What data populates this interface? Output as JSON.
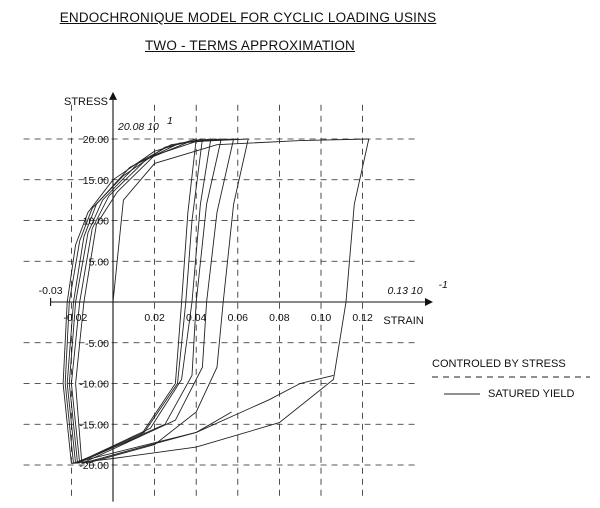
{
  "titles": {
    "line1": "ENDOCHRONIQUE MODEL FOR CYCLIC LOADING USINS",
    "line2": "TWO - TERMS APPROXIMATION"
  },
  "legend": {
    "dashed_label": "CONTROLED BY STRESS",
    "solid_label": "SATURED YIELD"
  },
  "chart_data": {
    "type": "line",
    "title": "ENDOCHRONIQUE MODEL FOR CYCLIC LOADING USINS",
    "subtitle": "TWO - TERMS APPROXIMATION",
    "xlabel": "STRAIN",
    "ylabel": "STRESS",
    "xlim": [
      -0.035,
      0.13
    ],
    "ylim": [
      -20,
      20
    ],
    "x_ticks": [
      "0.02",
      "0.04",
      "0.06",
      "0.08",
      "0.10",
      "0.12"
    ],
    "x_tick_values": [
      0.02,
      0.04,
      0.06,
      0.08,
      0.1,
      0.12
    ],
    "x_neg_ticks": [
      "-0.02",
      "-0.03"
    ],
    "y_ticks": [
      "20.00",
      "15.00",
      "10.00",
      "5.00",
      "-5.00",
      "-10.00",
      "-15.00",
      "-20.00"
    ],
    "y_tick_values": [
      20,
      15,
      10,
      5,
      -5,
      -10,
      -15,
      -20
    ],
    "annotations": {
      "y_max": {
        "base": "20.08 10",
        "exp": "1"
      },
      "x_max": {
        "base": "0.13 10",
        "exp": "-1"
      }
    },
    "grid": true,
    "series": [
      {
        "values": [
          [
            0,
            0
          ],
          [
            0.005,
            12.5
          ],
          [
            0.02,
            17
          ],
          [
            0.05,
            19.3
          ],
          [
            0.09,
            19.8
          ],
          [
            0.123,
            20
          ]
        ]
      },
      {
        "values": [
          [
            0.123,
            20
          ],
          [
            0.116,
            12
          ],
          [
            0.112,
            0
          ],
          [
            0.106,
            -9.5
          ],
          [
            0.08,
            -14.8
          ],
          [
            0.04,
            -17.8
          ],
          [
            0,
            -19.2
          ],
          [
            -0.02,
            -19.8
          ]
        ]
      },
      {
        "values": [
          [
            -0.02,
            -19.8
          ],
          [
            0.04,
            -16
          ],
          [
            0.075,
            -12
          ],
          [
            0.09,
            -10
          ],
          [
            0.106,
            -9
          ]
        ]
      },
      {
        "values": [
          [
            0.065,
            20
          ],
          [
            0.058,
            12
          ],
          [
            0.053,
            0
          ],
          [
            0.05,
            -8
          ],
          [
            0.04,
            -13.5
          ],
          [
            0.02,
            -17.5
          ],
          [
            -0.013,
            -19.8
          ]
        ]
      },
      {
        "values": [
          [
            -0.015,
            -19.8
          ],
          [
            0.04,
            -16
          ],
          [
            0.057,
            -13.5
          ]
        ]
      },
      {
        "values": [
          [
            0.058,
            20
          ],
          [
            0.05,
            11
          ],
          [
            0.045,
            0
          ],
          [
            0.043,
            -8
          ],
          [
            0.03,
            -14.5
          ],
          [
            -0.015,
            -19.8
          ]
        ]
      },
      {
        "values": [
          [
            0.052,
            20
          ],
          [
            0.045,
            12
          ],
          [
            0.04,
            0
          ],
          [
            0.038,
            -9
          ],
          [
            0.025,
            -15
          ],
          [
            -0.017,
            -19.8
          ]
        ]
      },
      {
        "values": [
          [
            0.047,
            20
          ],
          [
            0.042,
            12
          ],
          [
            0.038,
            0
          ],
          [
            0.033,
            -9.5
          ],
          [
            0.018,
            -15.5
          ],
          [
            -0.018,
            -19.8
          ]
        ]
      },
      {
        "values": [
          [
            0.043,
            20
          ],
          [
            0.038,
            10
          ],
          [
            0.035,
            0
          ],
          [
            0.031,
            -10
          ],
          [
            0.015,
            -16
          ],
          [
            -0.018,
            -19.8
          ]
        ]
      },
      {
        "values": [
          [
            0.04,
            20
          ],
          [
            0.036,
            11
          ],
          [
            0.033,
            0
          ],
          [
            0.03,
            -10
          ],
          [
            0.013,
            -16.5
          ],
          [
            -0.019,
            -19.8
          ]
        ]
      },
      {
        "values": [
          [
            -0.02,
            -19.8
          ],
          [
            -0.024,
            -10
          ],
          [
            -0.022,
            0
          ],
          [
            -0.018,
            7
          ],
          [
            -0.012,
            11
          ],
          [
            0.0,
            15
          ],
          [
            0.02,
            18.5
          ],
          [
            0.04,
            20
          ]
        ]
      },
      {
        "values": [
          [
            -0.019,
            -19.8
          ],
          [
            -0.023,
            -10
          ],
          [
            -0.021,
            0
          ],
          [
            -0.016,
            7.5
          ],
          [
            -0.01,
            11.5
          ],
          [
            0.005,
            15.5
          ],
          [
            0.025,
            19
          ],
          [
            0.043,
            20
          ]
        ]
      },
      {
        "values": [
          [
            -0.018,
            -19.8
          ],
          [
            -0.022,
            -10
          ],
          [
            -0.019,
            0
          ],
          [
            -0.014,
            8
          ],
          [
            -0.008,
            12
          ],
          [
            0.008,
            16.5
          ],
          [
            0.028,
            19.3
          ],
          [
            0.047,
            20
          ]
        ]
      },
      {
        "values": [
          [
            -0.017,
            -19.8
          ],
          [
            -0.021,
            -10
          ],
          [
            -0.018,
            0
          ],
          [
            -0.012,
            8.5
          ],
          [
            -0.005,
            12.5
          ],
          [
            0.012,
            17
          ],
          [
            0.032,
            19.5
          ],
          [
            0.052,
            20
          ]
        ]
      },
      {
        "values": [
          [
            -0.016,
            -19.8
          ],
          [
            -0.02,
            -10
          ],
          [
            -0.016,
            0
          ],
          [
            -0.01,
            9
          ],
          [
            -0.002,
            13
          ],
          [
            0.016,
            17.5
          ],
          [
            0.036,
            19.6
          ],
          [
            0.058,
            20
          ]
        ]
      },
      {
        "values": [
          [
            -0.015,
            -19.8
          ],
          [
            -0.018,
            -10
          ],
          [
            -0.014,
            0
          ],
          [
            -0.008,
            9.5
          ],
          [
            0.002,
            13.5
          ],
          [
            0.02,
            18
          ],
          [
            0.04,
            19.7
          ],
          [
            0.065,
            20
          ]
        ]
      }
    ]
  }
}
